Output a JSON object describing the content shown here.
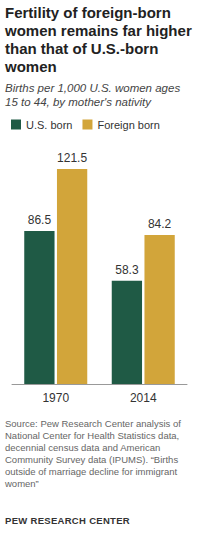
{
  "chart_data": {
    "type": "bar",
    "title": "Fertility of foreign-born women remains far higher than that of U.S.-born women",
    "subtitle": "Births per 1,000 U.S. women ages 15 to 44, by mother's nativity",
    "categories": [
      "1970",
      "2014"
    ],
    "series": [
      {
        "name": "U.S. born",
        "color": "#1f5a45",
        "values": [
          86.5,
          58.3
        ]
      },
      {
        "name": "Foreign born",
        "color": "#d2a53a",
        "values": [
          121.5,
          84.2
        ]
      }
    ],
    "ylim": [
      0,
      130
    ],
    "data_labels": true,
    "tick_labels": "x",
    "grid": false,
    "legend": "top-left",
    "source": "Source: Pew Research Center analysis of National Center for Health Statistics data, decennial census data and American Community Survey data (IPUMS). “Births outside of marriage decline for immigrant women”",
    "credit": "PEW RESEARCH CENTER"
  }
}
